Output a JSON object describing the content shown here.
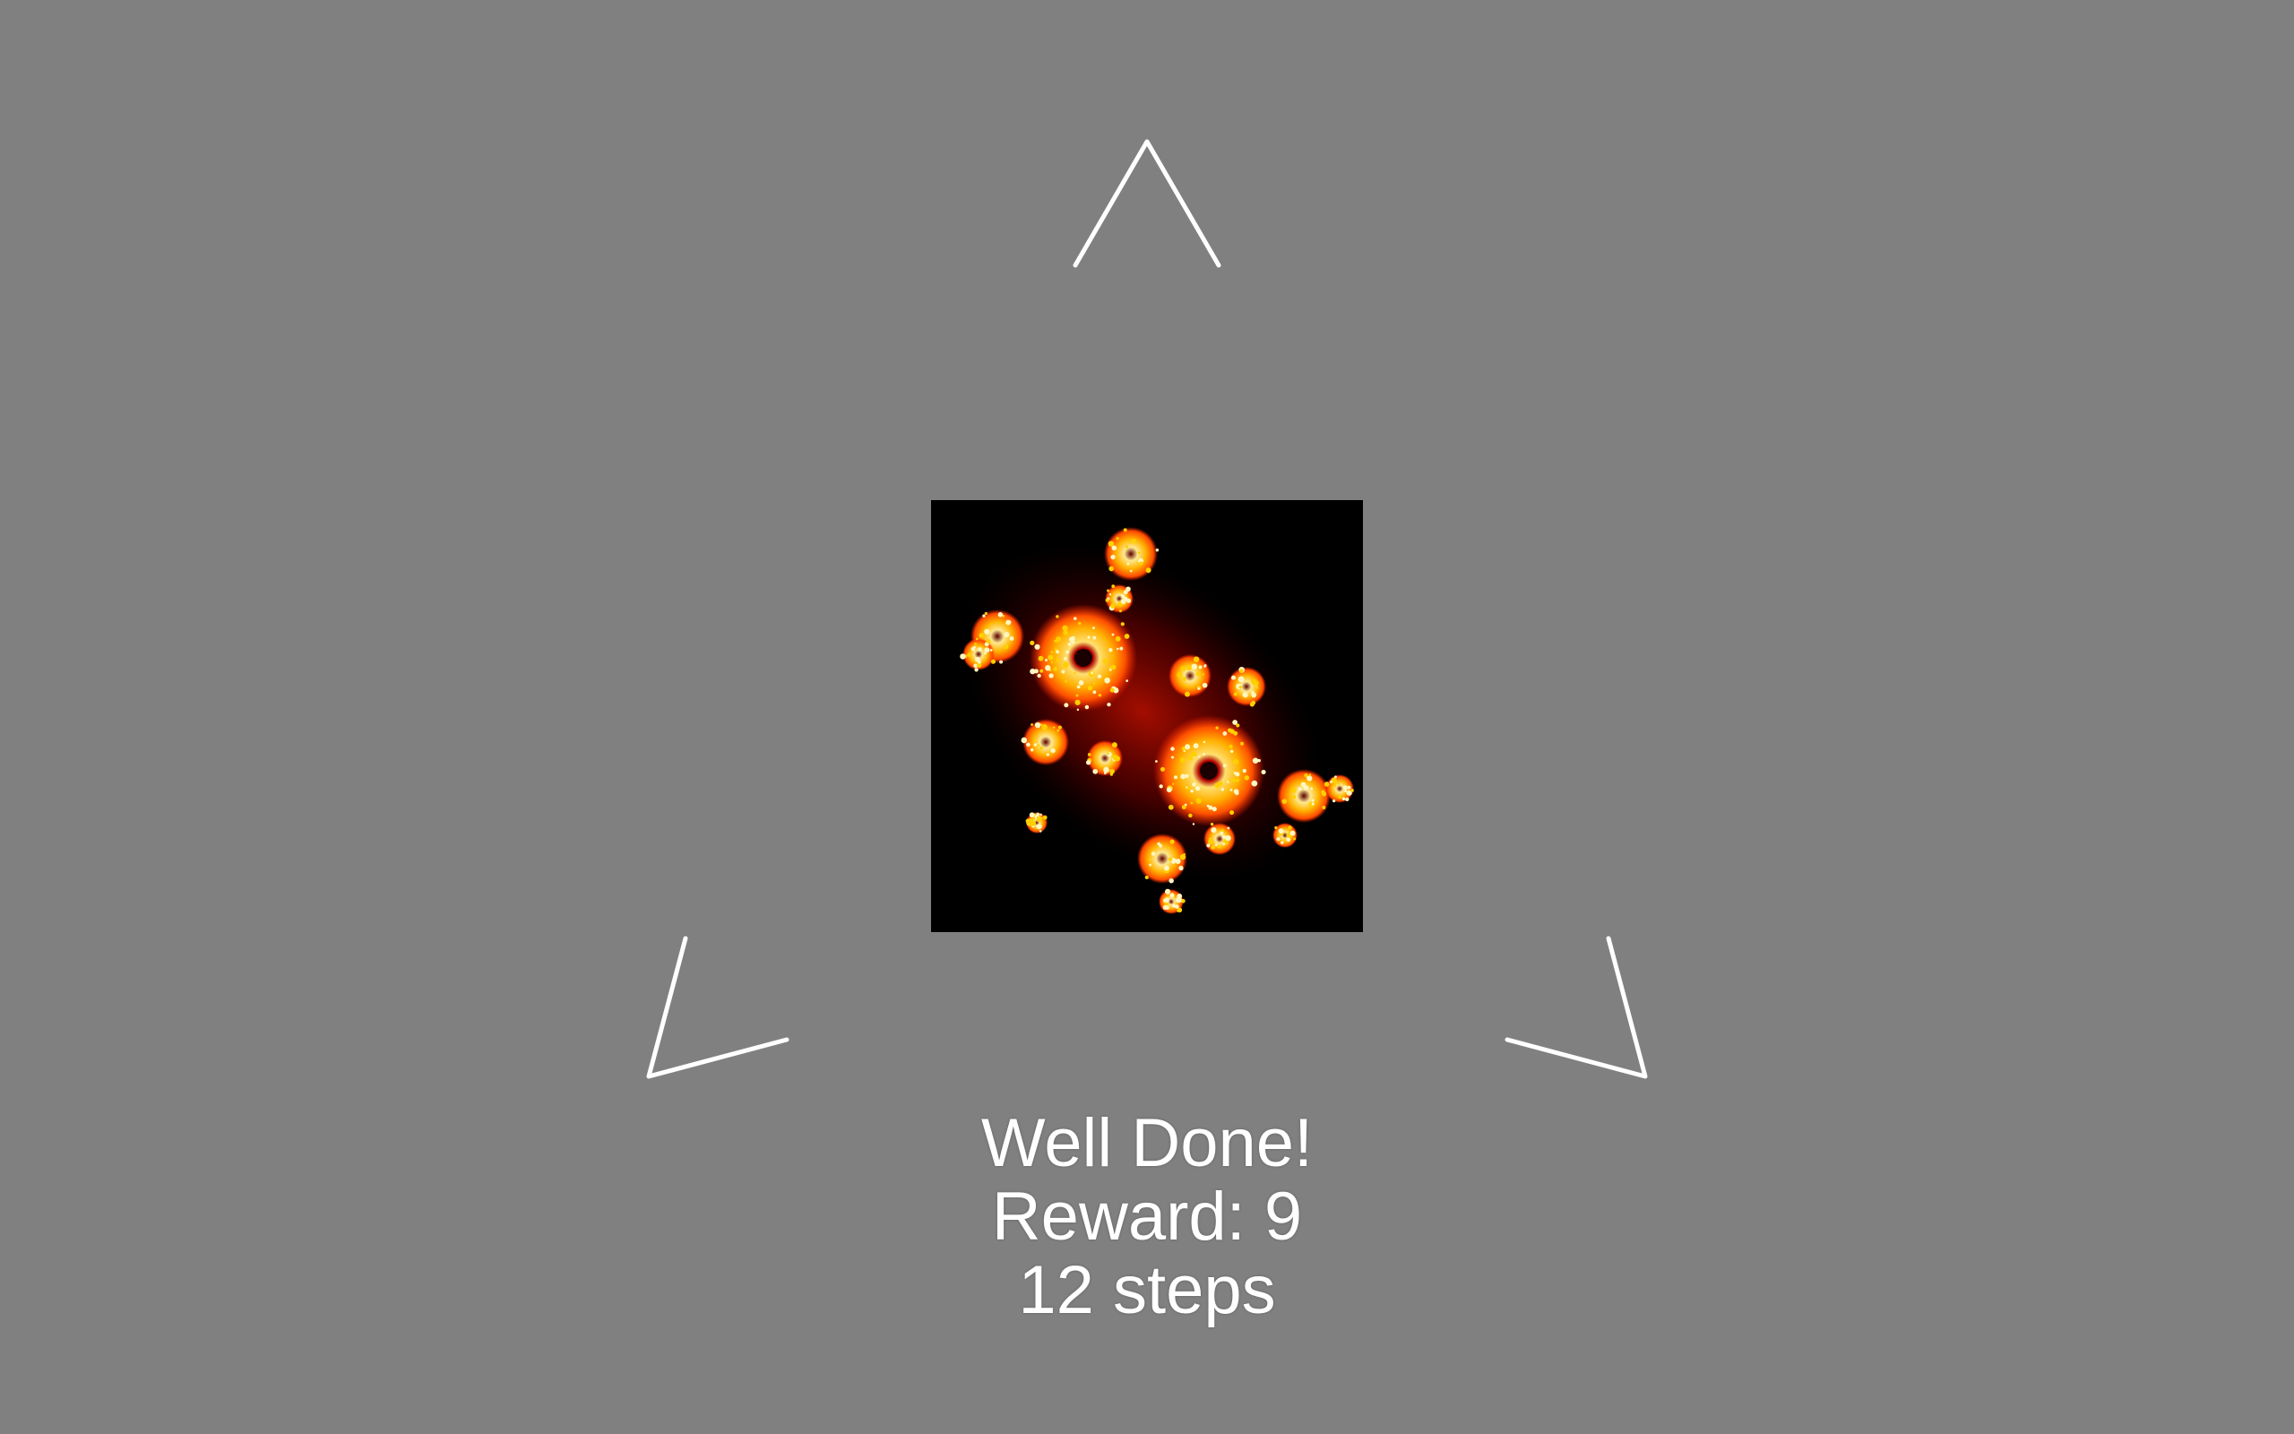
{
  "game": {
    "status_message": "Well Done!",
    "reward_text": "Reward: 9",
    "steps_text": "12 steps"
  },
  "stimulus": {
    "type": "julia-set-fractal",
    "colors": {
      "background": "#808080",
      "frame": "#000000",
      "outer_glow": "#8b0000",
      "mid": "#ff4500",
      "hot": "#ffd700",
      "core": "#fffacd"
    }
  },
  "cursors": {
    "count": 3,
    "color": "#ffffff",
    "names": [
      "top-chevron-icon",
      "bottom-left-chevron-icon",
      "bottom-right-chevron-icon"
    ]
  }
}
